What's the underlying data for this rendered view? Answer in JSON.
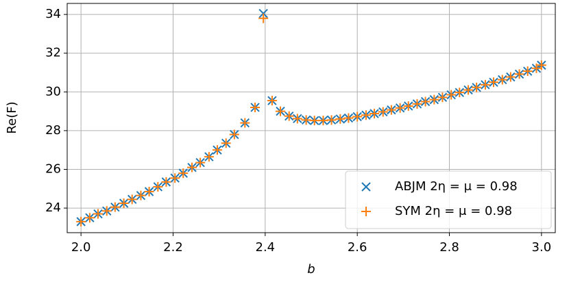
{
  "chart_data": {
    "type": "scatter",
    "x_label": "b",
    "y_label": "Re(F)",
    "x": [
      2.0,
      2.019,
      2.037,
      2.056,
      2.074,
      2.093,
      2.111,
      2.13,
      2.148,
      2.167,
      2.185,
      2.204,
      2.222,
      2.241,
      2.259,
      2.278,
      2.296,
      2.315,
      2.333,
      2.356,
      2.378,
      2.396,
      2.415,
      2.433,
      2.452,
      2.47,
      2.489,
      2.507,
      2.526,
      2.544,
      2.563,
      2.581,
      2.6,
      2.619,
      2.637,
      2.656,
      2.674,
      2.693,
      2.711,
      2.73,
      2.748,
      2.767,
      2.785,
      2.804,
      2.822,
      2.841,
      2.859,
      2.878,
      2.896,
      2.915,
      2.933,
      2.952,
      2.97,
      2.989,
      3.0
    ],
    "series": [
      {
        "name": "ABJM 2η = μ = 0.98",
        "color": "#1f77b4",
        "marker": "x",
        "values": [
          23.3,
          23.5,
          23.7,
          23.85,
          24.05,
          24.25,
          24.45,
          24.65,
          24.85,
          25.1,
          25.35,
          25.55,
          25.8,
          26.1,
          26.35,
          26.65,
          27.0,
          27.35,
          27.8,
          28.4,
          29.2,
          34.05,
          29.55,
          29.0,
          28.75,
          28.62,
          28.55,
          28.52,
          28.52,
          28.55,
          28.6,
          28.65,
          28.72,
          28.8,
          28.88,
          28.97,
          29.07,
          29.17,
          29.27,
          29.38,
          29.5,
          29.6,
          29.72,
          29.85,
          29.97,
          30.1,
          30.23,
          30.37,
          30.5,
          30.63,
          30.77,
          30.92,
          31.07,
          31.22,
          31.38
        ]
      },
      {
        "name": "SYM 2η = μ = 0.98",
        "color": "#ff7f0e",
        "marker": "+",
        "values": [
          23.3,
          23.5,
          23.7,
          23.85,
          24.05,
          24.25,
          24.45,
          24.65,
          24.85,
          25.1,
          25.35,
          25.55,
          25.8,
          26.1,
          26.35,
          26.65,
          27.0,
          27.35,
          27.8,
          28.4,
          29.2,
          33.8,
          29.55,
          29.0,
          28.75,
          28.62,
          28.55,
          28.52,
          28.52,
          28.55,
          28.6,
          28.65,
          28.72,
          28.8,
          28.88,
          28.97,
          29.07,
          29.17,
          29.27,
          29.38,
          29.5,
          29.6,
          29.72,
          29.85,
          29.97,
          30.1,
          30.23,
          30.37,
          30.5,
          30.63,
          30.77,
          30.92,
          31.07,
          31.22,
          31.38
        ]
      }
    ],
    "xlim": [
      1.97,
      3.03
    ],
    "ylim": [
      22.73,
      34.57
    ],
    "xticks": [
      {
        "value": 2,
        "label": "2.0"
      },
      {
        "value": 2.2,
        "label": "2.2"
      },
      {
        "value": 2.4,
        "label": "2.4"
      },
      {
        "value": 2.6,
        "label": "2.6"
      },
      {
        "value": 2.8,
        "label": "2.8"
      },
      {
        "value": 3,
        "label": "3.0"
      }
    ],
    "yticks": [
      24,
      26,
      28,
      30,
      32,
      34
    ],
    "grid": true,
    "legend": "lower right"
  }
}
